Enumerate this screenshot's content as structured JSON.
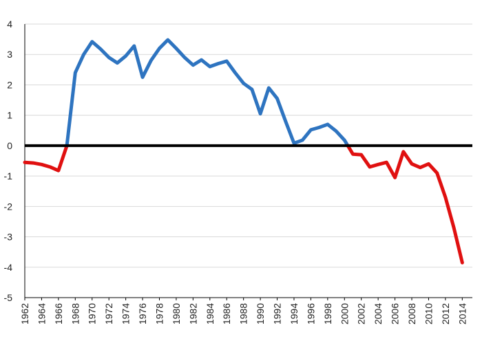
{
  "chart_data": {
    "type": "line",
    "title": "",
    "xlabel": "",
    "ylabel": "",
    "ylim": [
      -5,
      4
    ],
    "xlim": [
      1962,
      2015
    ],
    "yticks": [
      -5,
      -4,
      -3,
      -2,
      -1,
      0,
      1,
      2,
      3,
      4
    ],
    "xticks": [
      1962,
      1964,
      1966,
      1968,
      1970,
      1972,
      1974,
      1976,
      1978,
      1980,
      1982,
      1984,
      1986,
      1988,
      1990,
      1992,
      1994,
      1996,
      1998,
      2000,
      2002,
      2004,
      2006,
      2008,
      2010,
      2012,
      2014
    ],
    "grid": true,
    "zero_line": true,
    "colors": {
      "positive": "#2e74c0",
      "negative": "#e01010",
      "zero_line": "#000000",
      "grid": "#d9d9d9"
    },
    "series": [
      {
        "x": [
          1962,
          1963,
          1964,
          1965,
          1966,
          1967,
          1968,
          1969,
          1970,
          1971,
          1972,
          1973,
          1974,
          1975,
          1976,
          1977,
          1978,
          1979,
          1980,
          1981,
          1982,
          1983,
          1984,
          1985,
          1986,
          1987,
          1988,
          1989,
          1990,
          1991,
          1992,
          1993,
          1994,
          1995,
          1996,
          1997,
          1998,
          1999,
          2000,
          2001,
          2002,
          2003,
          2004,
          2005,
          2006,
          2007,
          2008,
          2009,
          2010,
          2011,
          2012,
          2013,
          2014
        ],
        "values": [
          -0.55,
          -0.57,
          -0.62,
          -0.7,
          -0.82,
          0.0,
          2.4,
          3.0,
          3.42,
          3.18,
          2.9,
          2.72,
          2.95,
          3.28,
          2.25,
          2.8,
          3.2,
          3.48,
          3.2,
          2.9,
          2.65,
          2.82,
          2.6,
          2.7,
          2.78,
          2.4,
          2.05,
          1.85,
          1.05,
          1.9,
          1.55,
          0.8,
          0.08,
          0.18,
          0.52,
          0.6,
          0.7,
          0.48,
          0.18,
          -0.28,
          -0.3,
          -0.7,
          -0.62,
          -0.55,
          -1.05,
          -0.2,
          -0.6,
          -0.72,
          -0.6,
          -0.9,
          -1.7,
          -2.7,
          -3.85
        ]
      }
    ]
  }
}
